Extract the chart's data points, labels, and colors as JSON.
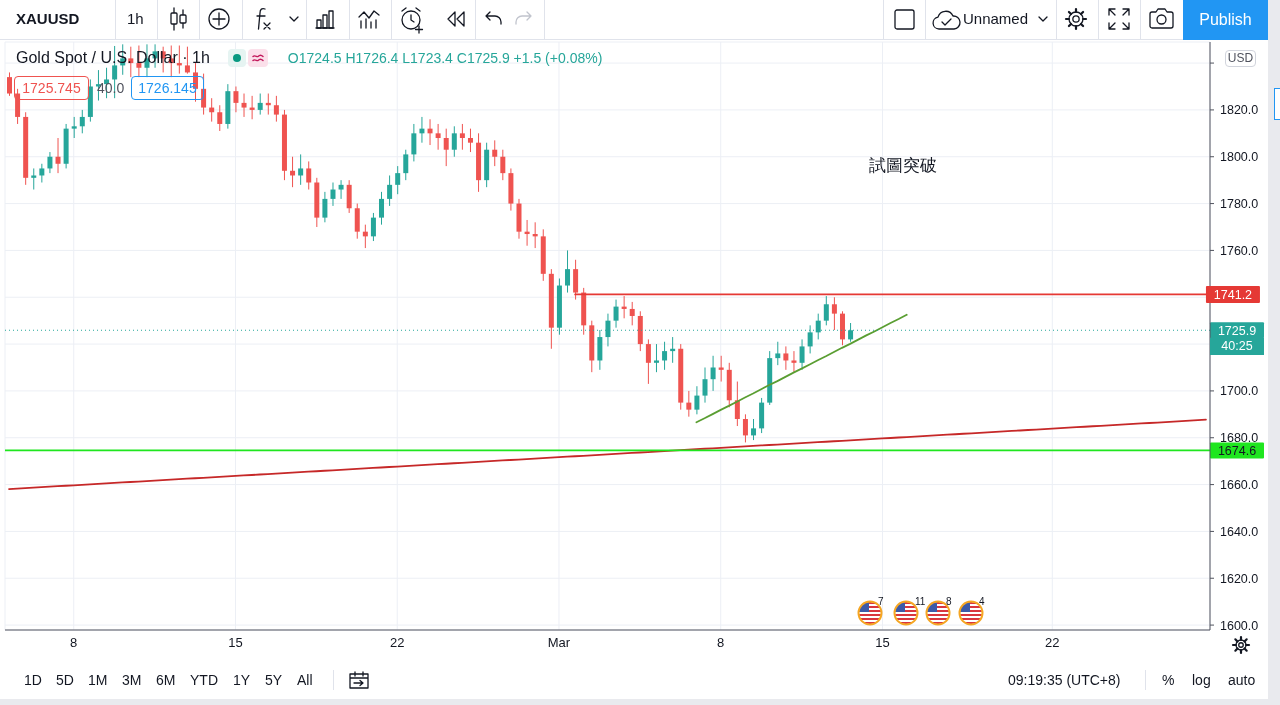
{
  "chart_data": {
    "type": "candlestick",
    "title": "Gold Spot / U.S. Dollar · 1h",
    "subtitle": "O1724.5 H1726.4 L1723.4 C1725.9 +1.5 (+0.08%)",
    "categories": [
      null,
      null,
      null,
      null,
      null,
      null,
      null,
      null,
      "8",
      null,
      null,
      null,
      null,
      null,
      null,
      null,
      null,
      null,
      null,
      null,
      null,
      null,
      null,
      null,
      null,
      null,
      null,
      null,
      "15",
      null,
      null,
      null,
      null,
      null,
      null,
      null,
      null,
      null,
      null,
      null,
      null,
      null,
      null,
      null,
      null,
      null,
      null,
      null,
      "22",
      null,
      null,
      null,
      null,
      null,
      null,
      null,
      null,
      null,
      null,
      null,
      null,
      null,
      null,
      null,
      null,
      null,
      null,
      null,
      "Mar",
      null,
      null,
      null,
      null,
      null,
      null,
      null,
      null,
      null,
      null,
      null,
      null,
      null,
      null,
      null,
      null,
      null,
      null,
      null,
      "8",
      null,
      null,
      null,
      null,
      null,
      null,
      null,
      null,
      null,
      null,
      null,
      null,
      null,
      null,
      null,
      null,
      null,
      null,
      null,
      "15",
      null,
      null,
      null,
      null,
      null,
      null,
      null,
      null,
      null,
      null,
      null,
      null,
      null,
      null,
      null,
      null,
      null,
      null,
      null,
      null,
      "22",
      null,
      null,
      null,
      null,
      null,
      null,
      null,
      null,
      null,
      null,
      null,
      null,
      null,
      null,
      null,
      null,
      null,
      null,
      null
    ],
    "ohlc": [
      [
        1834,
        1836,
        1826,
        1827
      ],
      [
        1827,
        1829,
        1814,
        1817
      ],
      [
        1817,
        1819,
        1788,
        1791
      ],
      [
        1791,
        1795,
        1786,
        1792
      ],
      [
        1792,
        1797,
        1789,
        1795
      ],
      [
        1795,
        1802,
        1793,
        1800
      ],
      [
        1800,
        1808,
        1793,
        1797
      ],
      [
        1797,
        1814,
        1795,
        1812
      ],
      [
        1812,
        1817,
        1808,
        1813
      ],
      [
        1813,
        1820,
        1810,
        1817
      ],
      [
        1817,
        1833,
        1815,
        1830
      ],
      [
        1830,
        1837,
        1824,
        1831
      ],
      [
        1831,
        1838,
        1825,
        1833
      ],
      [
        1833,
        1847.3,
        1825,
        1839
      ],
      [
        1839,
        1848,
        1835,
        1842
      ],
      [
        1842,
        1847,
        1834,
        1840
      ],
      [
        1840,
        1847.5,
        1834,
        1838
      ],
      [
        1838,
        1848,
        1834,
        1842
      ],
      [
        1842,
        1848,
        1838,
        1845
      ],
      [
        1845,
        1847,
        1836,
        1842
      ],
      [
        1842,
        1847.5,
        1834,
        1840
      ],
      [
        1840,
        1847.5,
        1835.5,
        1839
      ],
      [
        1839,
        1847,
        1835.5,
        1836
      ],
      [
        1836,
        1840,
        1823.5,
        1829
      ],
      [
        1829,
        1835.5,
        1818,
        1821
      ],
      [
        1821,
        1825,
        1815,
        1819
      ],
      [
        1819,
        1822,
        1811,
        1814
      ],
      [
        1814,
        1831,
        1812,
        1828
      ],
      [
        1828,
        1830,
        1819,
        1823
      ],
      [
        1823,
        1827,
        1817,
        1821
      ],
      [
        1821,
        1826,
        1816,
        1820
      ],
      [
        1820,
        1827,
        1818,
        1823
      ],
      [
        1823,
        1827,
        1818,
        1822
      ],
      [
        1822,
        1826,
        1815,
        1818
      ],
      [
        1818,
        1820,
        1790,
        1794
      ],
      [
        1794,
        1800,
        1787,
        1792
      ],
      [
        1792,
        1801,
        1788,
        1795
      ],
      [
        1795,
        1798,
        1786,
        1789
      ],
      [
        1789,
        1791,
        1770,
        1774
      ],
      [
        1774,
        1785,
        1772,
        1782
      ],
      [
        1782,
        1789,
        1779,
        1786
      ],
      [
        1786,
        1790,
        1782,
        1788
      ],
      [
        1788,
        1790,
        1776,
        1778
      ],
      [
        1778,
        1780,
        1765,
        1768
      ],
      [
        1768,
        1771,
        1761,
        1766
      ],
      [
        1766,
        1776,
        1764,
        1774
      ],
      [
        1774,
        1785,
        1771,
        1782
      ],
      [
        1782,
        1792,
        1779,
        1788
      ],
      [
        1788,
        1796,
        1784,
        1793
      ],
      [
        1793,
        1803,
        1790,
        1801
      ],
      [
        1801,
        1814,
        1798,
        1810
      ],
      [
        1810,
        1817,
        1806,
        1812
      ],
      [
        1812,
        1816,
        1805,
        1810
      ],
      [
        1810,
        1814,
        1803,
        1808
      ],
      [
        1808,
        1812,
        1796,
        1803
      ],
      [
        1803,
        1813,
        1800,
        1810
      ],
      [
        1810,
        1814,
        1803,
        1808
      ],
      [
        1808,
        1812,
        1802,
        1806
      ],
      [
        1806,
        1810,
        1785,
        1790
      ],
      [
        1790,
        1806,
        1787,
        1803
      ],
      [
        1803,
        1807,
        1796,
        1800
      ],
      [
        1800,
        1803,
        1790,
        1793
      ],
      [
        1793,
        1795,
        1777,
        1780
      ],
      [
        1780,
        1782,
        1765,
        1768
      ],
      [
        1768,
        1773,
        1762,
        1767
      ],
      [
        1767,
        1772,
        1761,
        1766
      ],
      [
        1766,
        1769,
        1747,
        1750
      ],
      [
        1750,
        1752,
        1718,
        1727
      ],
      [
        1727,
        1748,
        1724,
        1745
      ],
      [
        1745,
        1760,
        1742,
        1752
      ],
      [
        1752,
        1756,
        1739,
        1742
      ],
      [
        1742,
        1744,
        1724,
        1728
      ],
      [
        1728,
        1730,
        1708,
        1713
      ],
      [
        1713,
        1726,
        1709,
        1723
      ],
      [
        1723,
        1733,
        1719,
        1730
      ],
      [
        1730,
        1739,
        1727,
        1736
      ],
      [
        1736,
        1740.5,
        1731,
        1735
      ],
      [
        1735,
        1738,
        1728,
        1732
      ],
      [
        1732,
        1734,
        1717,
        1720
      ],
      [
        1720,
        1722,
        1703,
        1712
      ],
      [
        1712,
        1720,
        1708,
        1713
      ],
      [
        1713,
        1721,
        1709,
        1717
      ],
      [
        1717,
        1723,
        1712,
        1718
      ],
      [
        1718,
        1720,
        1692,
        1695
      ],
      [
        1695,
        1700,
        1689,
        1692
      ],
      [
        1692,
        1702,
        1690,
        1698
      ],
      [
        1698,
        1710,
        1695,
        1705
      ],
      [
        1705,
        1715,
        1700,
        1710
      ],
      [
        1710,
        1715,
        1704,
        1709
      ],
      [
        1709,
        1712,
        1693,
        1696
      ],
      [
        1696,
        1704,
        1685,
        1688
      ],
      [
        1688,
        1690,
        1678,
        1681
      ],
      [
        1681,
        1688,
        1679,
        1684
      ],
      [
        1684,
        1697,
        1682,
        1695
      ],
      [
        1695,
        1717,
        1694,
        1714
      ],
      [
        1714,
        1721,
        1711,
        1716
      ],
      [
        1716,
        1719,
        1709,
        1713
      ],
      [
        1713,
        1717,
        1708,
        1712
      ],
      [
        1712,
        1722,
        1709,
        1719
      ],
      [
        1719,
        1728,
        1716,
        1725
      ],
      [
        1725,
        1733,
        1722,
        1730
      ],
      [
        1730,
        1740.5,
        1728,
        1737
      ],
      [
        1737,
        1740,
        1726,
        1733
      ],
      [
        1733,
        1734,
        1719.5,
        1722
      ],
      [
        1722,
        1729,
        1721,
        1725.9
      ],
      null,
      null,
      null,
      null,
      null,
      null,
      null,
      null,
      null,
      null,
      null,
      null,
      null,
      null,
      null,
      null,
      null,
      null,
      null,
      null,
      null,
      null,
      null,
      null,
      null,
      null,
      null,
      null,
      null,
      null,
      null,
      null,
      null,
      null,
      null,
      null,
      null,
      null,
      null,
      null,
      null,
      null,
      null,
      null
    ],
    "colors": [
      "#ef5350",
      "#ef5350",
      "#ef5350",
      "#26a69a",
      "#26a69a",
      "#26a69a",
      "#ef5350",
      "#26a69a",
      "#26a69a",
      "#26a69a",
      "#26a69a",
      "#26a69a",
      "#26a69a",
      "#26a69a",
      "#26a69a",
      "#ef5350",
      "#ef5350",
      "#26a69a",
      "#26a69a",
      "#ef5350",
      "#ef5350",
      "#ef5350",
      "#ef5350",
      "#ef5350",
      "#ef5350",
      "#ef5350",
      "#ef5350",
      "#26a69a",
      "#ef5350",
      "#ef5350",
      "#ef5350",
      "#26a69a",
      "#ef5350",
      "#ef5350",
      "#ef5350",
      "#ef5350",
      "#26a69a",
      "#ef5350",
      "#ef5350",
      "#26a69a",
      "#26a69a",
      "#26a69a",
      "#ef5350",
      "#ef5350",
      "#ef5350",
      "#26a69a",
      "#26a69a",
      "#26a69a",
      "#26a69a",
      "#26a69a",
      "#26a69a",
      "#26a69a",
      "#ef5350",
      "#ef5350",
      "#ef5350",
      "#26a69a",
      "#ef5350",
      "#ef5350",
      "#ef5350",
      "#26a69a",
      "#ef5350",
      "#ef5350",
      "#ef5350",
      "#ef5350",
      "#ef5350",
      "#ef5350",
      "#ef5350",
      "#ef5350",
      "#26a69a",
      "#26a69a",
      "#ef5350",
      "#ef5350",
      "#ef5350",
      "#26a69a",
      "#26a69a",
      "#26a69a",
      "#ef5350",
      "#ef5350",
      "#ef5350",
      "#ef5350",
      "#26a69a",
      "#26a69a",
      "#26a69a",
      "#ef5350",
      "#ef5350",
      "#26a69a",
      "#26a69a",
      "#26a69a",
      "#ef5350",
      "#ef5350",
      "#ef5350",
      "#ef5350",
      "#26a69a",
      "#26a69a",
      "#26a69a",
      "#26a69a",
      "#ef5350",
      "#ef5350",
      "#26a69a",
      "#26a69a",
      "#26a69a",
      "#26a69a",
      "#ef5350",
      "#ef5350",
      "#26a69a",
      null,
      null,
      null,
      null,
      null,
      null,
      null,
      null,
      null,
      null,
      null,
      null,
      null,
      null,
      null,
      null,
      null,
      null,
      null,
      null,
      null,
      null,
      null,
      null,
      null,
      null,
      null,
      null,
      null,
      null,
      null,
      null,
      null,
      null,
      null,
      null,
      null,
      null,
      null,
      null,
      null,
      null,
      null,
      null
    ],
    "series": [
      {
        "type": "line",
        "color": "#c62828",
        "values": [
          1658.1,
          1658.3,
          1658.5,
          1658.7,
          1658.9,
          1659.1,
          1659.3,
          1659.5,
          1659.7,
          1659.9,
          1660.1,
          1660.3,
          1660.5,
          1660.7,
          1660.9,
          1661.1,
          1661.3,
          1661.5,
          1661.7,
          1661.9,
          1662.1,
          1662.3,
          1662.5,
          1662.7,
          1662.9,
          1663.1,
          1663.3,
          1663.5,
          1663.7,
          1663.9,
          1664.1,
          1664.3,
          1664.5,
          1664.7,
          1664.9,
          1665.1,
          1665.3,
          1665.5,
          1665.7,
          1665.9,
          1666.1,
          1666.3,
          1666.5,
          1666.7,
          1666.9,
          1667.1,
          1667.3,
          1667.5,
          1667.7,
          1667.9,
          1668.1,
          1668.3,
          1668.5,
          1668.7,
          1668.9,
          1669.1,
          1669.3,
          1669.5,
          1669.7,
          1669.9,
          1670.1,
          1670.3,
          1670.5,
          1670.7,
          1670.9,
          1671.1,
          1671.3,
          1671.5,
          1671.7,
          1671.9,
          1672.1,
          1672.3,
          1672.5,
          1672.7,
          1672.9,
          1673.1,
          1673.3,
          1673.5,
          1673.7,
          1673.9,
          1674.1,
          1674.3,
          1674.5,
          1674.7,
          1674.9,
          1675.1,
          1675.3,
          1675.5,
          1675.7,
          1675.9,
          1676.1,
          1676.3,
          1676.5,
          1676.7,
          1676.9,
          1677.1,
          1677.3,
          1677.5,
          1677.7,
          1677.9,
          1678.1,
          1678.3,
          1678.5,
          1678.7,
          1678.9,
          1679.1,
          1679.3,
          1679.5,
          1679.7,
          1679.9,
          1680.1,
          1680.3,
          1680.5,
          1680.7,
          1680.9,
          1681.1,
          1681.3,
          1681.5,
          1681.7,
          1681.9,
          1682.1,
          1682.3,
          1682.5,
          1682.7,
          1682.9,
          1683.1,
          1683.3,
          1683.5,
          1683.7,
          1683.9,
          1684.1,
          1684.3,
          1684.5,
          1684.7,
          1684.9,
          1685.1,
          1685.3,
          1685.5,
          1685.7,
          1685.9,
          1686.1,
          1686.3,
          1686.5,
          1686.7,
          1686.9,
          1687.1,
          1687.3,
          1687.5,
          1687.7
        ]
      },
      {
        "type": "line",
        "color": "#5a9e32",
        "values": [
          null,
          null,
          null,
          null,
          null,
          null,
          null,
          null,
          null,
          null,
          null,
          null,
          null,
          null,
          null,
          null,
          null,
          null,
          null,
          null,
          null,
          null,
          null,
          null,
          null,
          null,
          null,
          null,
          null,
          null,
          null,
          null,
          null,
          null,
          null,
          null,
          null,
          null,
          null,
          null,
          null,
          null,
          null,
          null,
          null,
          null,
          null,
          null,
          null,
          null,
          null,
          null,
          null,
          null,
          null,
          null,
          null,
          null,
          null,
          null,
          null,
          null,
          null,
          null,
          null,
          null,
          null,
          null,
          null,
          null,
          null,
          null,
          null,
          null,
          null,
          null,
          null,
          null,
          null,
          null,
          null,
          null,
          null,
          null,
          null,
          1686.6,
          1688.3,
          1690.1,
          1691.9,
          1693.6,
          1695.4,
          1697.2,
          1698.9,
          1700.7,
          1702.5,
          1704.2,
          1706.0,
          1707.8,
          1709.5,
          1711.3,
          1713.1,
          1714.8,
          1716.6,
          1718.4,
          1720.1,
          1721.9,
          1723.7,
          1725.4,
          1727.2,
          1729.0,
          1730.7,
          1732.5,
          null,
          null,
          null,
          null,
          null,
          null,
          null,
          null,
          null,
          null,
          null,
          null,
          null,
          null,
          null,
          null,
          null,
          null,
          null,
          null,
          null,
          null,
          null,
          null,
          null,
          null,
          null,
          null,
          null,
          null,
          null,
          null,
          null,
          null,
          null,
          null,
          null
        ]
      },
      {
        "type": "line",
        "color": "#e53935",
        "values": [
          null,
          null,
          null,
          null,
          null,
          null,
          null,
          null,
          null,
          null,
          null,
          null,
          null,
          null,
          null,
          null,
          null,
          null,
          null,
          null,
          null,
          null,
          null,
          null,
          null,
          null,
          null,
          null,
          null,
          null,
          null,
          null,
          null,
          null,
          null,
          null,
          null,
          null,
          null,
          null,
          null,
          null,
          null,
          null,
          null,
          null,
          null,
          null,
          null,
          null,
          null,
          null,
          null,
          null,
          null,
          null,
          null,
          null,
          null,
          null,
          null,
          null,
          null,
          null,
          null,
          null,
          null,
          null,
          null,
          null,
          1741.2,
          1741.2,
          1741.2,
          1741.2,
          1741.2,
          1741.2,
          1741.2,
          1741.2,
          1741.2,
          1741.2,
          1741.2,
          1741.2,
          1741.2,
          1741.2,
          1741.2,
          1741.2,
          1741.2,
          1741.2,
          1741.2,
          1741.2,
          1741.2,
          1741.2,
          1741.2,
          1741.2,
          1741.2,
          1741.2,
          1741.2,
          1741.2,
          1741.2,
          1741.2,
          1741.2,
          1741.2,
          1741.2,
          1741.2,
          1741.2,
          1741.2,
          1741.2,
          1741.2,
          1741.2,
          1741.2,
          1741.2,
          1741.2,
          1741.2,
          1741.2,
          1741.2,
          1741.2,
          1741.2,
          1741.2,
          1741.2,
          1741.2,
          1741.2,
          1741.2,
          1741.2,
          1741.2,
          1741.2,
          1741.2,
          1741.2,
          1741.2,
          1741.2,
          1741.2,
          1741.2,
          1741.2,
          1741.2,
          1741.2,
          1741.2,
          1741.2,
          1741.2,
          1741.2,
          1741.2,
          1741.2,
          1741.2,
          1741.2,
          1741.2,
          1741.2,
          1741.2,
          1741.2,
          1741.2,
          1741.2,
          1741.2
        ],
        "value_labels": [
          null,
          null,
          null,
          null,
          null,
          null,
          null,
          null,
          null,
          null,
          null,
          null,
          null,
          null,
          null,
          null,
          null,
          null,
          null,
          null,
          null,
          null,
          null,
          null,
          null,
          null,
          null,
          null,
          null,
          null,
          null,
          null,
          null,
          null,
          null,
          null,
          null,
          null,
          null,
          null,
          null,
          null,
          null,
          null,
          null,
          null,
          null,
          null,
          null,
          null,
          null,
          null,
          null,
          null,
          null,
          null,
          null,
          null,
          null,
          null,
          null,
          null,
          null,
          null,
          null,
          null,
          null,
          null,
          null,
          null,
          null,
          null,
          null,
          null,
          null,
          null,
          null,
          null,
          null,
          null,
          null,
          null,
          null,
          null,
          null,
          null,
          null,
          null,
          null,
          null,
          null,
          null,
          null,
          null,
          null,
          null,
          null,
          null,
          null,
          null,
          null,
          null,
          null,
          null,
          null,
          null,
          null,
          null,
          null,
          null,
          null,
          null,
          null,
          null,
          null,
          null,
          null,
          null,
          null,
          null,
          null,
          null,
          null,
          null,
          null,
          null,
          null,
          null,
          null,
          null,
          null,
          null,
          null,
          null,
          null,
          null,
          null,
          null,
          null,
          null,
          null,
          null,
          null,
          null,
          null,
          null,
          null,
          null,
          "1741.2"
        ]
      }
    ],
    "ref_lines": [
      {
        "axis": "y",
        "value": 1674.6,
        "label": "1674.6",
        "color": "#1fe61f"
      },
      {
        "axis": "y",
        "value": 1725.9,
        "label": "1725.9",
        "color": "#26a69a",
        "line_style": "dotted"
      }
    ],
    "ylim": [
      1597.9,
      1849
    ],
    "yticks": [
      {
        "value": 1600,
        "label": "1600.0"
      },
      {
        "value": 1620,
        "label": "1620.0"
      },
      {
        "value": 1640,
        "label": "1640.0"
      },
      {
        "value": 1660,
        "label": "1660.0"
      },
      {
        "value": 1680,
        "label": "1680.0"
      },
      {
        "value": 1700,
        "label": "1700.0"
      },
      {
        "value": 1720,
        "label": null
      },
      {
        "value": 1740,
        "label": null
      },
      {
        "value": 1760,
        "label": "1760.0"
      },
      {
        "value": 1780,
        "label": "1780.0"
      },
      {
        "value": 1800,
        "label": "1800.0"
      },
      {
        "value": 1820,
        "label": "1820.0"
      },
      {
        "value": 1840,
        "label": null
      }
    ],
    "grid": true,
    "annotations": [
      "XAUUSD",
      "1h",
      "Unnamed",
      "Publish",
      "1725.745",
      "40.0",
      "1726.145",
      "試圖突破",
      "USD",
      "40:25",
      "7",
      "11",
      "8",
      "4",
      "1D",
      "5D",
      "1M",
      "3M",
      "6M",
      "YTD",
      "1Y",
      "5Y",
      "All",
      "09:19:35 (UTC+8)",
      "%",
      "log",
      "auto"
    ]
  }
}
